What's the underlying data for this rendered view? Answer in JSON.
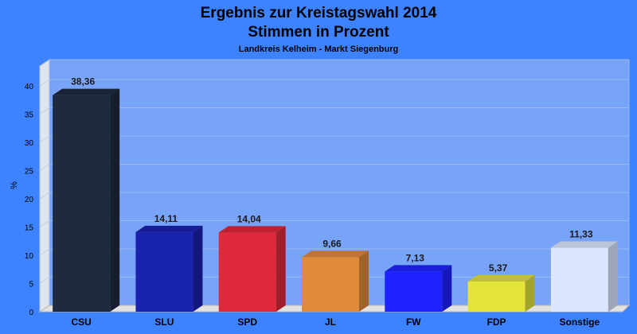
{
  "chart_data": {
    "type": "bar",
    "title": "Ergebnis zur Kreistagswahl 2014",
    "title_line2": "Stimmen in Prozent",
    "subtitle": "Landkreis Kelheim - Markt Siegenburg",
    "ylabel": "%",
    "xlabel": "",
    "ylim": [
      0,
      40
    ],
    "yticks": [
      "0",
      "5",
      "10",
      "15",
      "20",
      "25",
      "30",
      "35",
      "40"
    ],
    "grid": true,
    "categories": [
      "CSU",
      "SLU",
      "SPD",
      "JL",
      "FW",
      "FDP",
      "Sonstige"
    ],
    "values": [
      38.36,
      14.11,
      14.04,
      9.66,
      7.13,
      5.37,
      11.33
    ],
    "value_labels": [
      "38,36",
      "14,11",
      "14,04",
      "9,66",
      "7,13",
      "5,37",
      "11,33"
    ],
    "colors": [
      "#1e2a40",
      "#1a22b0",
      "#e0283a",
      "#e08a3c",
      "#1e22ff",
      "#e3e33a",
      "#dce6ff"
    ],
    "background_color": "#3d82ff",
    "plot_color": "#77a3f9"
  }
}
